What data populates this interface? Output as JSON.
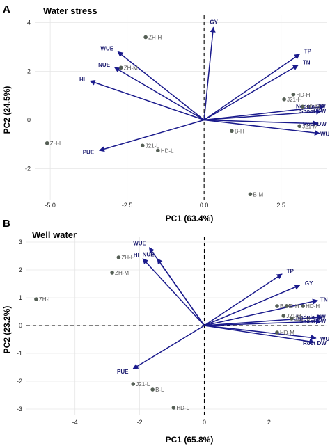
{
  "colors": {
    "arrow": "#1a1a8c",
    "point": "#555f55",
    "var_label": "#1a1a6e",
    "obs_label": "#555555",
    "grid": "#e6e6e6"
  },
  "chart_data": [
    {
      "type": "scatter",
      "panel_letter": "A",
      "title": "Water stress",
      "xlabel": "PC1 (63.4%)",
      "ylabel": "PC2 (24.5%)",
      "xlim": [
        -5.5,
        4.0
      ],
      "ylim": [
        -3.3,
        4.3
      ],
      "x_ticks": [
        -5.0,
        -2.5,
        0.0,
        2.5
      ],
      "x_tick_labels": [
        "-5.0",
        "-2.5",
        "0.0",
        "2.5"
      ],
      "y_ticks": [
        -2,
        0,
        2,
        4
      ],
      "y_tick_labels": [
        "-2",
        "0",
        "2",
        "4"
      ],
      "grid": true,
      "observations": [
        {
          "label": "ZH-H",
          "x": -1.9,
          "y": 3.4
        },
        {
          "label": "ZH-M",
          "x": -2.7,
          "y": 2.15
        },
        {
          "label": "ZH-L",
          "x": -5.1,
          "y": -0.95
        },
        {
          "label": "J21-L",
          "x": -2.0,
          "y": -1.05
        },
        {
          "label": "HD-L",
          "x": -1.5,
          "y": -1.25
        },
        {
          "label": "B-H",
          "x": 0.9,
          "y": -0.45
        },
        {
          "label": "B-M",
          "x": 1.5,
          "y": -3.05
        },
        {
          "label": "J21-H",
          "x": 2.6,
          "y": 0.85
        },
        {
          "label": "HD-H",
          "x": 2.9,
          "y": 1.05
        },
        {
          "label": "J21-M",
          "x": 3.1,
          "y": -0.25
        },
        {
          "label": "HD-M",
          "x": 3.2,
          "y": 0.55
        }
      ],
      "variables": [
        {
          "label": "GY",
          "x": 0.3,
          "y": 3.8
        },
        {
          "label": "TP",
          "x": 3.1,
          "y": 2.7
        },
        {
          "label": "TN",
          "x": 3.05,
          "y": 2.25
        },
        {
          "label": "WUE",
          "x": -2.8,
          "y": 2.8
        },
        {
          "label": "NUE",
          "x": -2.9,
          "y": 2.15
        },
        {
          "label": "HI",
          "x": -3.7,
          "y": 1.6
        },
        {
          "label": "Nodule DW",
          "x": 3.9,
          "y": 0.55
        },
        {
          "label": "Shoot DW",
          "x": 3.8,
          "y": 0.35
        },
        {
          "label": "Root DW",
          "x": 3.7,
          "y": -0.15
        },
        {
          "label": "WU",
          "x": 3.75,
          "y": -0.55
        },
        {
          "label": "PUE",
          "x": -3.4,
          "y": -1.25
        }
      ]
    },
    {
      "type": "scatter",
      "panel_letter": "B",
      "title": "Well water",
      "xlabel": "PC1 (65.8%)",
      "ylabel": "PC2 (23.2%)",
      "xlim": [
        -5.5,
        3.8
      ],
      "ylim": [
        -3.2,
        3.2
      ],
      "x_ticks": [
        -4,
        -2,
        0,
        2
      ],
      "x_tick_labels": [
        "-4",
        "-2",
        "0",
        "2"
      ],
      "y_ticks": [
        -3,
        -2,
        -1,
        0,
        1,
        2,
        3
      ],
      "y_tick_labels": [
        "-3",
        "-2",
        "-1",
        "0",
        "1",
        "2",
        "3"
      ],
      "grid": true,
      "observations": [
        {
          "label": "ZH-H",
          "x": -2.65,
          "y": 2.45
        },
        {
          "label": "ZH-M",
          "x": -2.85,
          "y": 1.9
        },
        {
          "label": "ZH-L",
          "x": -5.2,
          "y": 0.95
        },
        {
          "label": "J21-L",
          "x": -2.2,
          "y": -2.1
        },
        {
          "label": "B-L",
          "x": -1.6,
          "y": -2.3
        },
        {
          "label": "HD-L",
          "x": -0.95,
          "y": -2.95
        },
        {
          "label": "B-M",
          "x": 2.25,
          "y": 0.7
        },
        {
          "label": "B-H",
          "x": 2.55,
          "y": 0.7
        },
        {
          "label": "HD-H",
          "x": 3.05,
          "y": 0.7
        },
        {
          "label": "J21-H",
          "x": 2.45,
          "y": 0.35
        },
        {
          "label": "J21-M",
          "x": 2.7,
          "y": 0.25
        },
        {
          "label": "HD-M",
          "x": 2.25,
          "y": -0.25
        }
      ],
      "variables": [
        {
          "label": "WUE",
          "x": -1.7,
          "y": 2.8
        },
        {
          "label": "HI",
          "x": -1.9,
          "y": 2.4
        },
        {
          "label": "NUE",
          "x": -1.45,
          "y": 2.4
        },
        {
          "label": "TP",
          "x": 2.4,
          "y": 1.85
        },
        {
          "label": "GY",
          "x": 2.95,
          "y": 1.45
        },
        {
          "label": "TN",
          "x": 3.5,
          "y": 0.9
        },
        {
          "label": "Nodule DW",
          "x": 3.65,
          "y": 0.3
        },
        {
          "label": "Shoot DW",
          "x": 3.6,
          "y": 0.15
        },
        {
          "label": "Root DW",
          "x": 3.4,
          "y": -0.6
        },
        {
          "label": "WU",
          "x": 3.45,
          "y": -0.45
        },
        {
          "label": "PUE",
          "x": -2.2,
          "y": -1.55
        }
      ]
    }
  ]
}
